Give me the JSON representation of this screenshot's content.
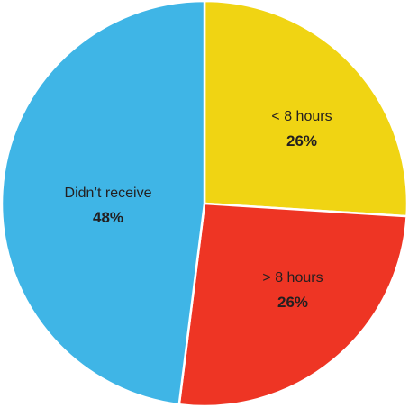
{
  "chart_data": {
    "type": "pie",
    "slices": [
      {
        "label": "< 8 hours",
        "value_label": "26%",
        "value": 26,
        "color": "#f0d413"
      },
      {
        "label": "> 8 hours",
        "value_label": "26%",
        "value": 26,
        "color": "#ee3524"
      },
      {
        "label": "Didn’t receive",
        "value_label": "48%",
        "value": 48,
        "color": "#3fb5e6"
      }
    ]
  }
}
